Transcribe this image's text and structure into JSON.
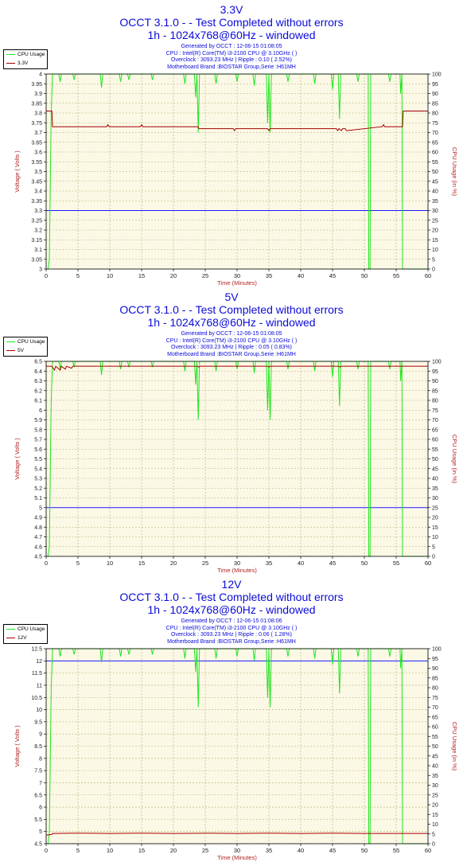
{
  "colors": {
    "title": "#0b0bd9",
    "axis_label": "#b22222",
    "tick_label": "#1a1a1a",
    "plot_bg": "#fcf8e6",
    "grid": "#aeae6a",
    "cpu_line": "#1ee61e",
    "voltage_line": "#a50000",
    "nominal_line": "#1a1aff"
  },
  "charts": [
    {
      "heading": "3.3V",
      "title_line1": "OCCT 3.1.0 -  - Test Completed without errors",
      "title_line2": "1h - 1024x768@60Hz - windowed",
      "info": [
        "Generated by OCCT : 12-06-15 01:08:05",
        "CPU : Intel(R) Core(TM) i3-2100 CPU @ 3.10GHz (  )",
        "Overclock : 3093.23 MHz | Ripple : 0.10 ( 2.52%)",
        "Motherboard Brand :BIOSTAR Group,Serie :H61MH"
      ],
      "legend": [
        "CPU Usage",
        "3.3V"
      ],
      "chart_data": {
        "type": "line",
        "xlabel": "Time (Minutes)",
        "ylabel": "Voltage ( Volts )",
        "y2label": "CPU Usage (in %)",
        "xlim": [
          0,
          60
        ],
        "xticks": [
          "0",
          "5",
          "10",
          "15",
          "20",
          "25",
          "30",
          "35",
          "40",
          "45",
          "50",
          "55",
          "60"
        ],
        "ylim": [
          3,
          4
        ],
        "yticks": [
          "3",
          "3.05",
          "3.1",
          "3.15",
          "3.2",
          "3.25",
          "3.3",
          "3.35",
          "3.4",
          "3.45",
          "3.5",
          "3.55",
          "3.6",
          "3.65",
          "3.7",
          "3.75",
          "3.8",
          "3.85",
          "3.9",
          "3.95",
          "4"
        ],
        "y2lim": [
          0,
          100
        ],
        "y2ticks": [
          "0",
          "5",
          "10",
          "15",
          "20",
          "25",
          "30",
          "35",
          "40",
          "45",
          "50",
          "55",
          "60",
          "65",
          "70",
          "75",
          "80",
          "85",
          "90",
          "95",
          "100"
        ],
        "nominal": 3.3,
        "voltage": {
          "x": [
            0,
            0.9,
            1.0,
            9.5,
            9.7,
            9.9,
            14.8,
            15.0,
            15.2,
            23.9,
            24.0,
            29.4,
            29.6,
            29.8,
            34.8,
            35.0,
            35.2,
            45.6,
            45.8,
            46.0,
            46.4,
            46.6,
            47.0,
            47.2,
            52.8,
            53.0,
            53.2,
            56.0,
            56.1,
            60
          ],
          "y": [
            3.81,
            3.81,
            3.73,
            3.73,
            3.74,
            3.73,
            3.73,
            3.74,
            3.73,
            3.73,
            3.72,
            3.72,
            3.71,
            3.72,
            3.72,
            3.71,
            3.72,
            3.72,
            3.71,
            3.72,
            3.71,
            3.72,
            3.72,
            3.71,
            3.73,
            3.74,
            3.73,
            3.73,
            3.81,
            3.81
          ]
        },
        "cpu_usage": {
          "x": [
            0,
            0.3,
            0.5,
            0.7,
            0.8,
            1.0,
            1.1,
            2.0,
            2.2,
            2.4,
            4.2,
            4.4,
            4.6,
            8.5,
            8.7,
            8.9,
            11.5,
            11.7,
            11.9,
            12.8,
            13.0,
            13.2,
            16.5,
            16.7,
            16.9,
            21.6,
            21.8,
            22.0,
            23.3,
            23.5,
            23.7,
            23.9,
            24.1,
            26.5,
            26.7,
            26.9,
            29.8,
            30.0,
            30.2,
            32.5,
            32.7,
            32.9,
            34.6,
            34.8,
            35.0,
            35.2,
            35.4,
            37.8,
            38.0,
            38.2,
            42.0,
            42.2,
            42.4,
            44.8,
            45.0,
            45.2,
            45.9,
            46.1,
            46.3,
            48.8,
            49.0,
            49.2,
            50.6,
            50.7,
            50.9,
            51.0,
            53.8,
            54.0,
            54.2,
            55.6,
            55.7,
            55.9,
            56.0,
            56.1,
            60
          ],
          "y": [
            0,
            0,
            5,
            55,
            80,
            100,
            100,
            100,
            96,
            100,
            100,
            97,
            100,
            100,
            93,
            100,
            100,
            96,
            100,
            100,
            97,
            100,
            100,
            97,
            100,
            100,
            95,
            100,
            100,
            88,
            100,
            70,
            100,
            100,
            95,
            100,
            100,
            96,
            100,
            100,
            94,
            100,
            100,
            75,
            100,
            70,
            100,
            100,
            96,
            100,
            100,
            95,
            100,
            100,
            92,
            100,
            100,
            77,
            100,
            100,
            96,
            100,
            100,
            0,
            0,
            100,
            100,
            96,
            100,
            100,
            90,
            100,
            0,
            0,
            0
          ]
        }
      }
    },
    {
      "heading": "5V",
      "title_line1": "OCCT 3.1.0 -  - Test Completed without errors",
      "title_line2": "1h - 1024x768@60Hz - windowed",
      "info": [
        "Generated by OCCT : 12-06-15 01:08:05",
        "CPU : Intel(R) Core(TM) i3-2100 CPU @ 3.10GHz (  )",
        "Overclock : 3093.23 MHz | Ripple : 0.05 ( 0.83%)",
        "Motherboard Brand :BIOSTAR Group,Serie :H61MH"
      ],
      "legend": [
        "CPU Usage",
        "5V"
      ],
      "chart_data": {
        "type": "line",
        "xlabel": "Time (Minutes)",
        "ylabel": "Voltage ( Volts )",
        "y2label": "CPU Usage (in %)",
        "xlim": [
          0,
          60
        ],
        "xticks": [
          "0",
          "5",
          "10",
          "15",
          "20",
          "25",
          "30",
          "35",
          "40",
          "45",
          "50",
          "55",
          "60"
        ],
        "ylim": [
          4.5,
          6.5
        ],
        "yticks": [
          "4.5",
          "4.6",
          "4.7",
          "4.8",
          "4.9",
          "5",
          "5.1",
          "5.2",
          "5.3",
          "5.4",
          "5.5",
          "5.6",
          "5.7",
          "5.8",
          "5.9",
          "6",
          "6.1",
          "6.2",
          "6.3",
          "6.4",
          "6.5"
        ],
        "y2lim": [
          0,
          100
        ],
        "y2ticks": [
          "0",
          "5",
          "10",
          "15",
          "20",
          "25",
          "30",
          "35",
          "40",
          "45",
          "50",
          "55",
          "60",
          "65",
          "70",
          "75",
          "80",
          "85",
          "90",
          "95",
          "100"
        ],
        "nominal": 5,
        "voltage": {
          "x": [
            0,
            0.9,
            1.0,
            1.3,
            1.5,
            2.2,
            2.4,
            3.0,
            3.2,
            4.0,
            4.2,
            23.8,
            24.0,
            24.2,
            34.8,
            35.0,
            35.2,
            46.0,
            46.2,
            46.4,
            60
          ],
          "y": [
            6.45,
            6.45,
            6.44,
            6.41,
            6.45,
            6.41,
            6.45,
            6.42,
            6.45,
            6.43,
            6.45,
            6.45,
            6.44,
            6.45,
            6.45,
            6.44,
            6.45,
            6.45,
            6.44,
            6.45,
            6.45
          ]
        },
        "cpu_usage": {
          "x": [
            0,
            0.3,
            0.5,
            0.7,
            0.8,
            1.0,
            1.1,
            2.0,
            2.2,
            2.4,
            4.2,
            4.4,
            4.6,
            8.5,
            8.7,
            8.9,
            11.5,
            11.7,
            11.9,
            12.8,
            13.0,
            13.2,
            16.5,
            16.7,
            16.9,
            21.6,
            21.8,
            22.0,
            23.3,
            23.5,
            23.7,
            23.9,
            24.1,
            26.5,
            26.7,
            26.9,
            29.8,
            30.0,
            30.2,
            32.5,
            32.7,
            32.9,
            34.6,
            34.8,
            35.0,
            35.2,
            35.4,
            37.8,
            38.0,
            38.2,
            42.0,
            42.2,
            42.4,
            44.8,
            45.0,
            45.2,
            45.9,
            46.1,
            46.3,
            48.8,
            49.0,
            49.2,
            50.6,
            50.7,
            50.9,
            51.0,
            53.8,
            54.0,
            54.2,
            55.6,
            55.7,
            55.9,
            56.0,
            56.1,
            60
          ],
          "y": [
            0,
            0,
            5,
            55,
            80,
            100,
            100,
            100,
            96,
            100,
            100,
            97,
            100,
            100,
            93,
            100,
            100,
            96,
            100,
            100,
            97,
            100,
            100,
            97,
            100,
            100,
            95,
            100,
            100,
            88,
            100,
            70,
            100,
            100,
            95,
            100,
            100,
            96,
            100,
            100,
            94,
            100,
            100,
            75,
            100,
            70,
            100,
            100,
            96,
            100,
            100,
            95,
            100,
            100,
            92,
            100,
            100,
            77,
            100,
            100,
            96,
            100,
            100,
            0,
            0,
            100,
            100,
            96,
            100,
            100,
            90,
            100,
            0,
            0,
            0
          ]
        }
      }
    },
    {
      "heading": "12V",
      "title_line1": "OCCT 3.1.0 -  - Test Completed without errors",
      "title_line2": "1h - 1024x768@60Hz - windowed",
      "info": [
        "Generated by OCCT : 12-06-15 01:08:06",
        "CPU : Intel(R) Core(TM) i3-2100 CPU @ 3.10GHz (  )",
        "Overclock : 3093.23 MHz | Ripple : 0.06 ( 1.28%)",
        "Motherboard Brand :BIOSTAR Group,Serie :H61MH"
      ],
      "legend": [
        "CPU Usage",
        "12V"
      ],
      "chart_data": {
        "type": "line",
        "xlabel": "Time (Minutes)",
        "ylabel": "Voltage ( Volts )",
        "y2label": "CPU Usage (in %)",
        "xlim": [
          0,
          60
        ],
        "xticks": [
          "0",
          "5",
          "10",
          "15",
          "20",
          "25",
          "30",
          "35",
          "40",
          "45",
          "50",
          "55",
          "60"
        ],
        "ylim": [
          4.5,
          12.5
        ],
        "yticks": [
          "4.5",
          "5",
          "5.5",
          "6",
          "6.5",
          "7",
          "7.5",
          "8",
          "8.5",
          "9",
          "9.5",
          "10",
          "10.5",
          "11",
          "11.5",
          "12",
          "12.5"
        ],
        "y2lim": [
          0,
          100
        ],
        "y2ticks": [
          "0",
          "5",
          "10",
          "15",
          "20",
          "25",
          "30",
          "35",
          "40",
          "45",
          "50",
          "55",
          "60",
          "65",
          "70",
          "75",
          "80",
          "85",
          "90",
          "95",
          "100"
        ],
        "nominal": 12,
        "voltage": {
          "x": [
            0,
            0.9,
            1.0,
            5,
            10,
            15,
            20,
            25,
            30,
            35,
            40,
            45,
            50,
            55,
            60
          ],
          "y": [
            4.85,
            4.88,
            4.92,
            4.93,
            4.92,
            4.93,
            4.92,
            4.93,
            4.92,
            4.93,
            4.92,
            4.93,
            4.92,
            4.92,
            4.92
          ]
        },
        "cpu_usage": {
          "x": [
            0,
            0.3,
            0.5,
            0.7,
            0.8,
            1.0,
            1.1,
            2.0,
            2.2,
            2.4,
            4.2,
            4.4,
            4.6,
            8.5,
            8.7,
            8.9,
            11.5,
            11.7,
            11.9,
            12.8,
            13.0,
            13.2,
            16.5,
            16.7,
            16.9,
            21.6,
            21.8,
            22.0,
            23.3,
            23.5,
            23.7,
            23.9,
            24.1,
            26.5,
            26.7,
            26.9,
            29.8,
            30.0,
            30.2,
            32.5,
            32.7,
            32.9,
            34.6,
            34.8,
            35.0,
            35.2,
            35.4,
            37.8,
            38.0,
            38.2,
            42.0,
            42.2,
            42.4,
            44.8,
            45.0,
            45.2,
            45.9,
            46.1,
            46.3,
            48.8,
            49.0,
            49.2,
            50.6,
            50.7,
            50.9,
            51.0,
            53.8,
            54.0,
            54.2,
            55.6,
            55.7,
            55.9,
            56.0,
            56.1,
            60
          ],
          "y": [
            0,
            0,
            5,
            55,
            80,
            100,
            100,
            100,
            96,
            100,
            100,
            97,
            100,
            100,
            93,
            100,
            100,
            96,
            100,
            100,
            97,
            100,
            100,
            97,
            100,
            100,
            95,
            100,
            100,
            88,
            100,
            70,
            100,
            100,
            95,
            100,
            100,
            96,
            100,
            100,
            94,
            100,
            100,
            75,
            100,
            70,
            100,
            100,
            96,
            100,
            100,
            95,
            100,
            100,
            92,
            100,
            100,
            77,
            100,
            100,
            96,
            100,
            100,
            0,
            0,
            100,
            100,
            96,
            100,
            100,
            90,
            100,
            0,
            0,
            0
          ]
        }
      }
    }
  ]
}
